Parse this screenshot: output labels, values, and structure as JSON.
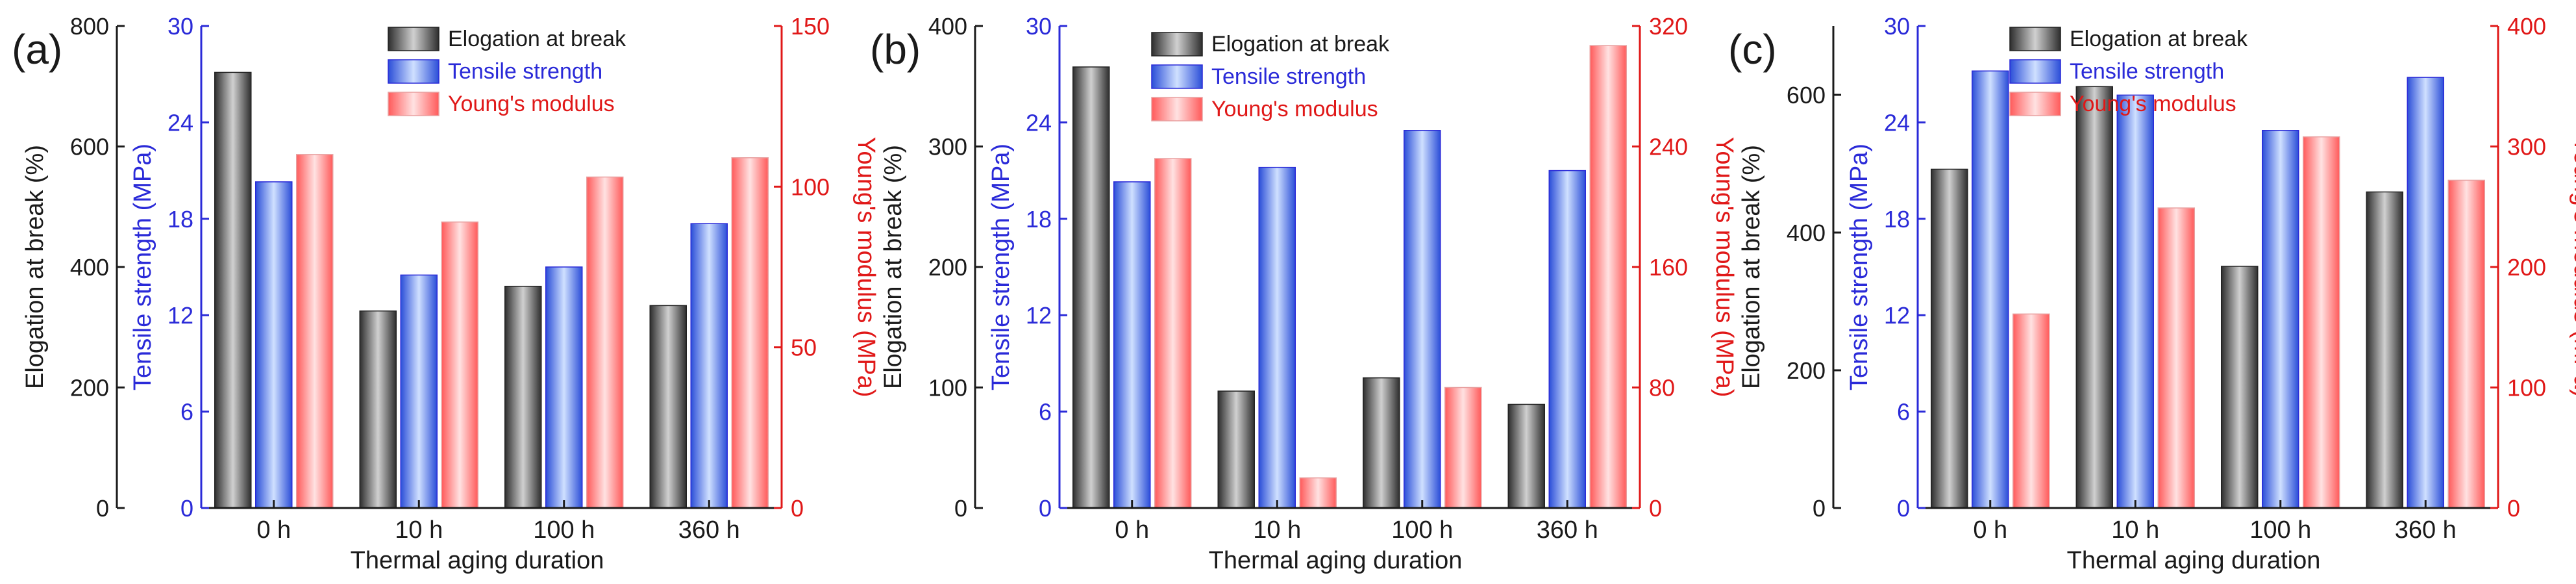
{
  "colors": {
    "axis": "#1a1a1a",
    "blue": "#2a2ad8",
    "red": "#e01818",
    "bar_black_dark": "#2e2e2e",
    "bar_black_light": "#d0d0d0",
    "bar_blue_dark": "#2b4ed8",
    "bar_blue_light": "#cfe0ff",
    "bar_red_dark": "#ff5a5a",
    "bar_red_light": "#ffe2e2"
  },
  "chart_data": [
    {
      "type": "bar",
      "panel_label": "(a)",
      "categories": [
        "0 h",
        "10 h",
        "100 h",
        "360 h"
      ],
      "xlabel": "Thermal aging duration",
      "legend_position": "top-center",
      "axes": {
        "left_outer": {
          "label": "Elogation at break (%)",
          "ylim": [
            0,
            800
          ],
          "ticks": [
            0,
            200,
            400,
            600,
            800
          ],
          "tick_labels": [
            "0",
            "200",
            "400",
            "600",
            "800"
          ],
          "color": "axis"
        },
        "left_inner": {
          "label": "Tensile strength (MPa)",
          "ylim": [
            0,
            30
          ],
          "ticks": [
            0,
            6,
            12,
            18,
            24,
            30
          ],
          "tick_labels": [
            "0",
            "6",
            "12",
            "18",
            "24",
            "30"
          ],
          "color": "blue"
        },
        "right": {
          "label": "Young's modulus (MPa)",
          "ylim": [
            0,
            150
          ],
          "ticks": [
            0,
            50,
            100,
            150
          ],
          "tick_labels": [
            "0",
            "50",
            "100",
            "150"
          ],
          "color": "red"
        }
      },
      "series": [
        {
          "name": "Elogation at break",
          "axis": "left_outer",
          "style": "black",
          "values": [
            723,
            327,
            368,
            336
          ]
        },
        {
          "name": "Tensile strength",
          "axis": "left_inner",
          "style": "blue",
          "values": [
            20.3,
            14.5,
            15.0,
            17.7
          ]
        },
        {
          "name": "Young's modulus",
          "axis": "right",
          "style": "red",
          "values": [
            110,
            89,
            103,
            109
          ]
        }
      ]
    },
    {
      "type": "bar",
      "panel_label": "(b)",
      "categories": [
        "0 h",
        "10 h",
        "100 h",
        "360 h"
      ],
      "xlabel": "Thermal aging duration",
      "legend_position": "top-center",
      "axes": {
        "left_outer": {
          "label": "Elogation at break (%)",
          "ylim": [
            0,
            400
          ],
          "ticks": [
            0,
            100,
            200,
            300,
            400
          ],
          "tick_labels": [
            "0",
            "100",
            "200",
            "300",
            "400"
          ],
          "color": "axis"
        },
        "left_inner": {
          "label": "Tensile strength (MPa)",
          "ylim": [
            0,
            30
          ],
          "ticks": [
            0,
            6,
            12,
            18,
            24,
            30
          ],
          "tick_labels": [
            "0",
            "6",
            "12",
            "18",
            "24",
            "30"
          ],
          "color": "blue"
        },
        "right": {
          "label": "Young's modulus (MPa)",
          "ylim": [
            0,
            320
          ],
          "ticks": [
            0,
            80,
            160,
            240,
            320
          ],
          "tick_labels": [
            "0",
            "80",
            "160",
            "240",
            "320"
          ],
          "color": "red"
        }
      },
      "series": [
        {
          "name": "Elogation at break",
          "axis": "left_outer",
          "style": "black",
          "values": [
            366,
            97,
            108,
            86
          ]
        },
        {
          "name": "Tensile strength",
          "axis": "left_inner",
          "style": "blue",
          "values": [
            20.3,
            21.2,
            23.5,
            21.0
          ]
        },
        {
          "name": "Young's modulus",
          "axis": "right",
          "style": "red",
          "values": [
            232,
            20,
            80,
            307
          ]
        }
      ]
    },
    {
      "type": "bar",
      "panel_label": "(c)",
      "categories": [
        "0 h",
        "10 h",
        "100 h",
        "360 h"
      ],
      "xlabel": "Thermal aging duration",
      "legend_position": "top-center",
      "axes": {
        "left_outer": {
          "label": "Elogation at break (%)",
          "ylim": [
            0,
            700
          ],
          "ticks": [
            0,
            200,
            400,
            600
          ],
          "tick_labels": [
            "0",
            "200",
            "400",
            "600"
          ],
          "color": "axis"
        },
        "left_inner": {
          "label": "Tensile strength (MPa)",
          "ylim": [
            0,
            30
          ],
          "ticks": [
            0,
            6,
            12,
            18,
            24,
            30
          ],
          "tick_labels": [
            "0",
            "6",
            "12",
            "18",
            "24",
            "30"
          ],
          "color": "blue"
        },
        "right": {
          "label": "Young's modulus (MPa)",
          "ylim": [
            0,
            400
          ],
          "ticks": [
            0,
            100,
            200,
            300,
            400
          ],
          "tick_labels": [
            "0",
            "100",
            "200",
            "300",
            "400"
          ],
          "color": "red"
        }
      },
      "series": [
        {
          "name": "Elogation at break",
          "axis": "left_outer",
          "style": "black",
          "values": [
            492,
            612,
            351,
            459
          ]
        },
        {
          "name": "Tensile strength",
          "axis": "left_inner",
          "style": "blue",
          "values": [
            27.2,
            25.7,
            23.5,
            26.8
          ]
        },
        {
          "name": "Young's modulus",
          "axis": "right",
          "style": "red",
          "values": [
            161,
            249,
            308,
            272
          ]
        }
      ]
    }
  ]
}
